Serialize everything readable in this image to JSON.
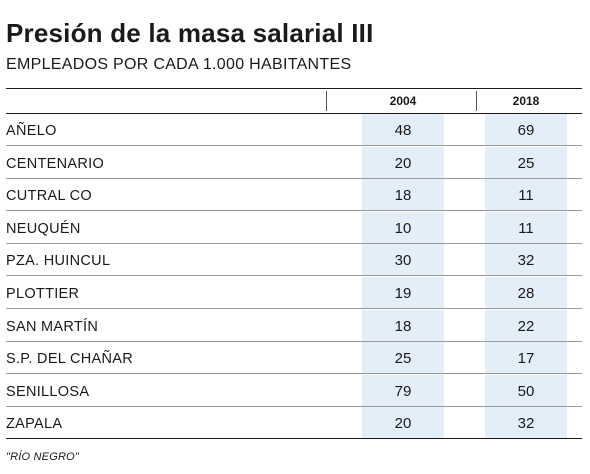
{
  "chart_data": {
    "type": "table",
    "title": "Presión de la masa salarial III",
    "subtitle": "EMPLEADOS POR CADA 1.000 HABITANTES",
    "columns": [
      "2004",
      "2018"
    ],
    "rows": [
      {
        "label": "AÑELO",
        "values": [
          48,
          69
        ]
      },
      {
        "label": "CENTENARIO",
        "values": [
          20,
          25
        ]
      },
      {
        "label": "CUTRAL CO",
        "values": [
          18,
          11
        ]
      },
      {
        "label": "NEUQUÉN",
        "values": [
          10,
          11
        ]
      },
      {
        "label": "PZA. HUINCUL",
        "values": [
          30,
          32
        ]
      },
      {
        "label": "PLOTTIER",
        "values": [
          19,
          28
        ]
      },
      {
        "label": "SAN MARTÍN",
        "values": [
          18,
          22
        ]
      },
      {
        "label": "S.P. DEL CHAÑAR",
        "values": [
          25,
          17
        ]
      },
      {
        "label": "SENILLOSA",
        "values": [
          79,
          50
        ]
      },
      {
        "label": "ZAPALA",
        "values": [
          20,
          32
        ]
      }
    ],
    "footnote": "\"RÍO NEGRO\"",
    "colors": {
      "cell_background": "#e3eef8",
      "text": "#1a1a1a"
    }
  }
}
